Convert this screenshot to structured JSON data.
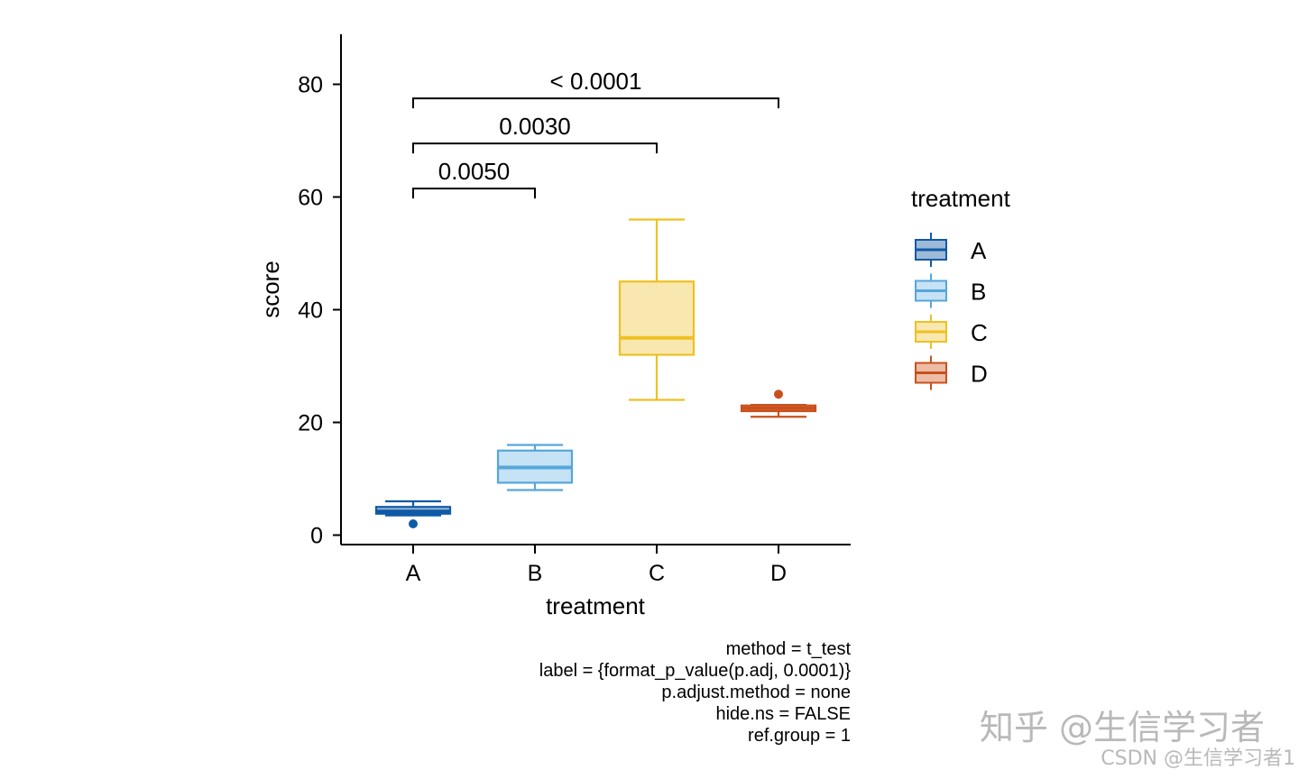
{
  "chart_data": {
    "type": "box",
    "xlabel": "treatment",
    "ylabel": "score",
    "categories": [
      "A",
      "B",
      "C",
      "D"
    ],
    "ylim": [
      -1.5,
      88.5
    ],
    "yticks": [
      0,
      20,
      40,
      60,
      80
    ],
    "series": [
      {
        "name": "A",
        "min": 3.5,
        "q1": 3.8,
        "median": 4.2,
        "q3": 5,
        "max": 6,
        "outliers": [
          2
        ],
        "color": "#0F5AA6",
        "fill": "#9EB9D6"
      },
      {
        "name": "B",
        "min": 8,
        "q1": 9.3,
        "median": 12,
        "q3": 15,
        "max": 16,
        "outliers": [],
        "color": "#56A6DB",
        "fill": "#C6E2F5"
      },
      {
        "name": "C",
        "min": 24,
        "q1": 32,
        "median": 35,
        "q3": 45,
        "max": 56,
        "outliers": [],
        "color": "#EFC022",
        "fill": "#F8E8B0"
      },
      {
        "name": "D",
        "min": 21,
        "q1": 22,
        "median": 22.5,
        "q3": 23,
        "max": 23.1,
        "outliers": [
          25
        ],
        "color": "#C9501C",
        "fill": "#EDBCA6"
      }
    ],
    "comparisons": [
      {
        "group1": "A",
        "group2": "B",
        "label": "0.0050",
        "y": 61.5
      },
      {
        "group1": "A",
        "group2": "C",
        "label": "0.0030",
        "y": 69.5
      },
      {
        "group1": "A",
        "group2": "D",
        "label": "< 0.0001",
        "y": 77.5
      }
    ],
    "legend": {
      "title": "treatment",
      "position": "right",
      "items": [
        "A",
        "B",
        "C",
        "D"
      ]
    },
    "caption": [
      "method = t_test",
      "label = {format_p_value(p.adj, 0.0001)}",
      "p.adjust.method = none",
      "hide.ns = FALSE",
      "ref.group = 1"
    ],
    "grid": false
  },
  "watermarks": {
    "zhihu": "知乎 @生信学习者",
    "csdn": "CSDN @生信学习者1"
  }
}
